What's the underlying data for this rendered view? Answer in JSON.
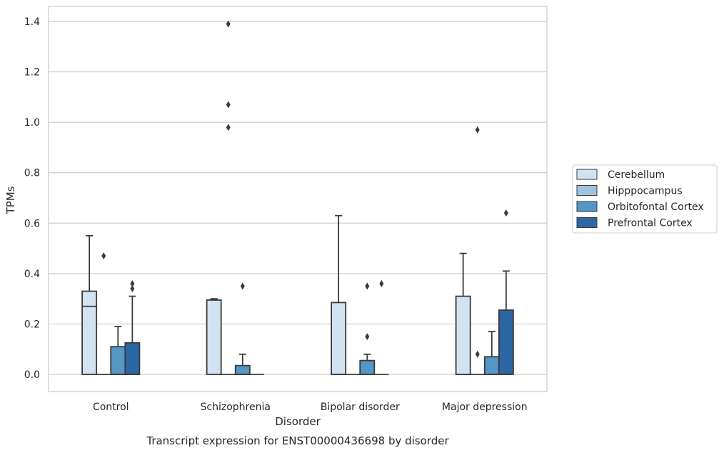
{
  "chart_data": {
    "type": "box",
    "title": "",
    "caption": "Transcript expression for ENST00000436698 by disorder",
    "xlabel": "Disorder",
    "ylabel": "TPMs",
    "ylim": [
      -0.065,
      1.46
    ],
    "yticks": [
      "0.0",
      "0.2",
      "0.4",
      "0.6",
      "0.8",
      "1.0",
      "1.2",
      "1.4"
    ],
    "grid": "horizontal",
    "legend_position": "right",
    "categories": [
      "Control",
      "Schizophrenia",
      "Bipolar disorder",
      "Major depression"
    ],
    "series": [
      {
        "name": "Cerebellum",
        "color": "#d3e2f0",
        "boxes": [
          {
            "q1": 0.0,
            "median": 0.27,
            "q3": 0.33,
            "whisker_low": 0.0,
            "whisker_high": 0.55,
            "outliers": []
          },
          {
            "q1": 0.0,
            "median": 0.295,
            "q3": 0.295,
            "whisker_low": 0.0,
            "whisker_high": 0.3,
            "outliers": []
          },
          {
            "q1": 0.0,
            "median": 0.0,
            "q3": 0.285,
            "whisker_low": 0.0,
            "whisker_high": 0.63,
            "outliers": []
          },
          {
            "q1": 0.0,
            "median": 0.0,
            "q3": 0.31,
            "whisker_low": 0.0,
            "whisker_high": 0.48,
            "outliers": []
          }
        ]
      },
      {
        "name": "Hipppocampus",
        "color": "#9dc3de",
        "boxes": [
          {
            "q1": 0.0,
            "median": 0.0,
            "q3": 0.0,
            "whisker_low": 0.0,
            "whisker_high": 0.0,
            "outliers": [
              0.47
            ]
          },
          {
            "q1": 0.0,
            "median": 0.0,
            "q3": 0.0,
            "whisker_low": 0.0,
            "whisker_high": 0.0,
            "outliers": [
              0.98,
              1.07,
              1.39
            ]
          },
          {
            "q1": 0.0,
            "median": 0.0,
            "q3": 0.0,
            "whisker_low": 0.0,
            "whisker_high": 0.0,
            "outliers": []
          },
          {
            "q1": 0.0,
            "median": 0.0,
            "q3": 0.0,
            "whisker_low": 0.0,
            "whisker_high": 0.0,
            "outliers": [
              0.08,
              0.97
            ]
          }
        ]
      },
      {
        "name": "Orbitofontal Cortex",
        "color": "#5496c6",
        "boxes": [
          {
            "q1": 0.0,
            "median": 0.0,
            "q3": 0.11,
            "whisker_low": 0.0,
            "whisker_high": 0.19,
            "outliers": []
          },
          {
            "q1": 0.0,
            "median": 0.0,
            "q3": 0.035,
            "whisker_low": 0.0,
            "whisker_high": 0.08,
            "outliers": [
              0.35
            ]
          },
          {
            "q1": 0.0,
            "median": 0.0,
            "q3": 0.055,
            "whisker_low": 0.0,
            "whisker_high": 0.08,
            "outliers": [
              0.15,
              0.35
            ]
          },
          {
            "q1": 0.0,
            "median": 0.0,
            "q3": 0.07,
            "whisker_low": 0.0,
            "whisker_high": 0.17,
            "outliers": []
          }
        ]
      },
      {
        "name": "Prefrontal Cortex",
        "color": "#2c67a5",
        "boxes": [
          {
            "q1": 0.0,
            "median": 0.0,
            "q3": 0.125,
            "whisker_low": 0.0,
            "whisker_high": 0.31,
            "outliers": [
              0.34,
              0.36
            ]
          },
          {
            "q1": 0.0,
            "median": 0.0,
            "q3": 0.0,
            "whisker_low": 0.0,
            "whisker_high": 0.0,
            "outliers": []
          },
          {
            "q1": 0.0,
            "median": 0.0,
            "q3": 0.0,
            "whisker_low": 0.0,
            "whisker_high": 0.0,
            "outliers": [
              0.36
            ]
          },
          {
            "q1": 0.0,
            "median": 0.0,
            "q3": 0.255,
            "whisker_low": 0.0,
            "whisker_high": 0.41,
            "outliers": [
              0.64
            ]
          }
        ]
      }
    ]
  }
}
